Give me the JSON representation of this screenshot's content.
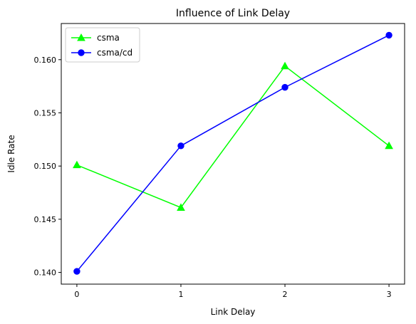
{
  "chart_data": {
    "type": "line",
    "title": "Influence of Link Delay",
    "xlabel": "Link Delay",
    "ylabel": "Idle Rate",
    "x": [
      0,
      1,
      2,
      3
    ],
    "xticks": [
      "0",
      "1",
      "2",
      "3"
    ],
    "yticks": [
      "0.140",
      "0.145",
      "0.150",
      "0.155",
      "0.160"
    ],
    "ylim": [
      0.1389,
      0.1634
    ],
    "xlim": [
      -0.15,
      3.15
    ],
    "grid": false,
    "legend_position": "top-left",
    "series": [
      {
        "name": "csma",
        "color": "#00ff00",
        "marker": "triangle",
        "values": [
          0.1501,
          0.1461,
          0.1594,
          0.1519
        ]
      },
      {
        "name": "csma/cd",
        "color": "#0000ff",
        "marker": "circle",
        "values": [
          0.1401,
          0.1519,
          0.1574,
          0.1623
        ]
      }
    ]
  }
}
